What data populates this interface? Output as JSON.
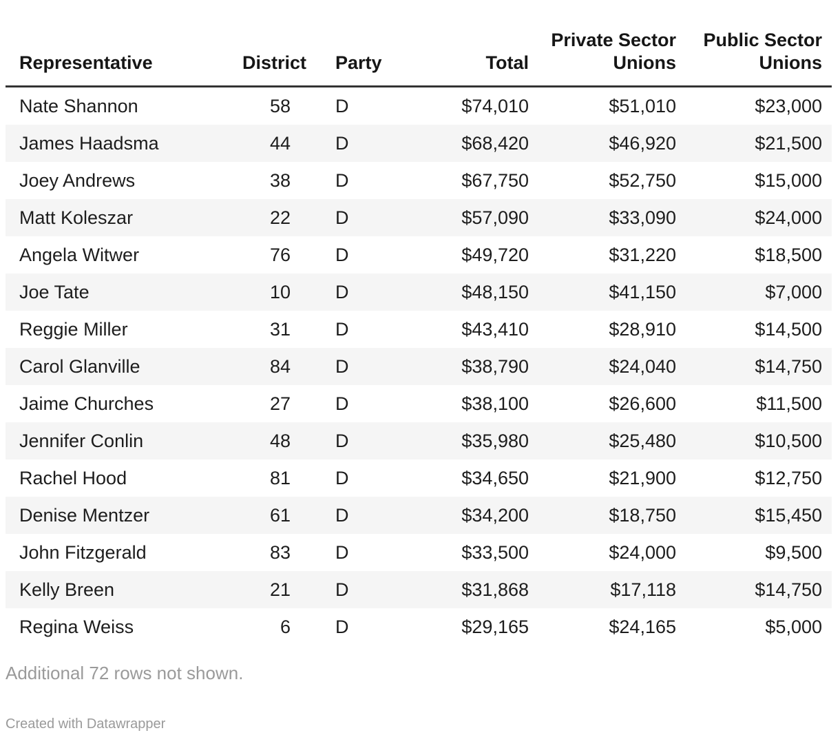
{
  "chart_data": {
    "type": "table",
    "title": "",
    "columns": [
      {
        "label": "Representative",
        "align": "left"
      },
      {
        "label": "District",
        "align": "right"
      },
      {
        "label": "Party",
        "align": "left"
      },
      {
        "label": "Total",
        "align": "right"
      },
      {
        "label": "Private Sector Unions",
        "align": "right"
      },
      {
        "label": "Public Sector Unions",
        "align": "right"
      }
    ],
    "rows": [
      [
        "Nate Shannon",
        "58",
        "D",
        "$74,010",
        "$51,010",
        "$23,000"
      ],
      [
        "James Haadsma",
        "44",
        "D",
        "$68,420",
        "$46,920",
        "$21,500"
      ],
      [
        "Joey Andrews",
        "38",
        "D",
        "$67,750",
        "$52,750",
        "$15,000"
      ],
      [
        "Matt Koleszar",
        "22",
        "D",
        "$57,090",
        "$33,090",
        "$24,000"
      ],
      [
        "Angela Witwer",
        "76",
        "D",
        "$49,720",
        "$31,220",
        "$18,500"
      ],
      [
        "Joe Tate",
        "10",
        "D",
        "$48,150",
        "$41,150",
        "$7,000"
      ],
      [
        "Reggie Miller",
        "31",
        "D",
        "$43,410",
        "$28,910",
        "$14,500"
      ],
      [
        "Carol Glanville",
        "84",
        "D",
        "$38,790",
        "$24,040",
        "$14,750"
      ],
      [
        "Jaime Churches",
        "27",
        "D",
        "$38,100",
        "$26,600",
        "$11,500"
      ],
      [
        "Jennifer Conlin",
        "48",
        "D",
        "$35,980",
        "$25,480",
        "$10,500"
      ],
      [
        "Rachel Hood",
        "81",
        "D",
        "$34,650",
        "$21,900",
        "$12,750"
      ],
      [
        "Denise Mentzer",
        "61",
        "D",
        "$34,200",
        "$18,750",
        "$15,450"
      ],
      [
        "John Fitzgerald",
        "83",
        "D",
        "$33,500",
        "$24,000",
        "$9,500"
      ],
      [
        "Kelly Breen",
        "21",
        "D",
        "$31,868",
        "$17,118",
        "$14,750"
      ],
      [
        "Regina Weiss",
        "6",
        "D",
        "$29,165",
        "$24,165",
        "$5,000"
      ]
    ],
    "note": "Additional 72 rows not shown.",
    "attribution": "Created with Datawrapper",
    "layout_hints": {
      "stripe_color": "#f5f5f5",
      "header_border_color": "#333333",
      "text_color": "#1d1d1d",
      "muted_text_color": "#9a9a9a",
      "background": "#ffffff"
    }
  }
}
